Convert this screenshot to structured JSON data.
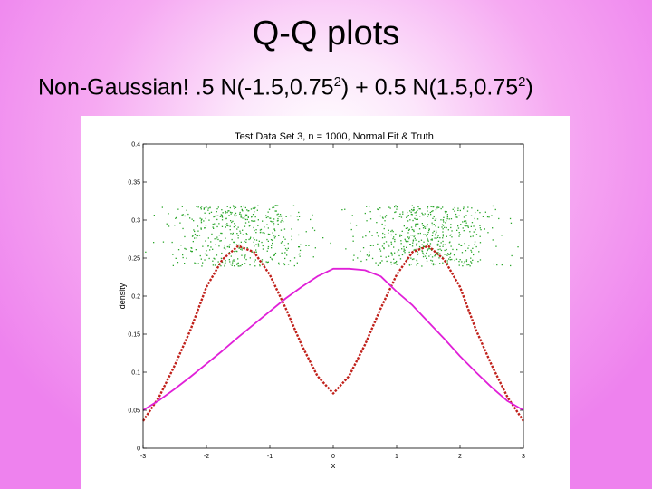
{
  "slide": {
    "title": "Q-Q plots",
    "subtitle_parts": [
      "Non-Gaussian! .5 N(-1.5,0.75",
      "2",
      ") + 0.5 N(1.5,0.75",
      "2",
      ")"
    ]
  },
  "chart_data": {
    "type": "line",
    "title": "Test Data Set 3, n = 1000, Normal Fit & Truth",
    "xlabel": "x",
    "ylabel": "density",
    "xlim": [
      -3,
      3
    ],
    "ylim": [
      0,
      0.4
    ],
    "xticks": [
      -3,
      -2,
      -1,
      0,
      1,
      2,
      3
    ],
    "yticks": [
      0,
      0.05,
      0.1,
      0.15,
      0.2,
      0.25,
      0.3,
      0.35,
      0.4
    ],
    "xtick_labels": [
      "-3",
      "-2",
      "-1",
      "0",
      "1",
      "2",
      "3"
    ],
    "ytick_labels": [
      "0",
      "0.05",
      "0.1",
      "0.15",
      "0.2",
      "0.25",
      "0.3",
      "0.35",
      "0.4"
    ],
    "grid": false,
    "series": [
      {
        "kind": "dashed-line",
        "color": "#c0201a",
        "x": [
          -3,
          -2.75,
          -2.5,
          -2.25,
          -2,
          -1.75,
          -1.5,
          -1.25,
          -1,
          -0.75,
          -0.5,
          -0.25,
          0,
          0.25,
          0.5,
          0.75,
          1,
          1.25,
          1.5,
          1.75,
          2,
          2.25,
          2.5,
          2.75,
          3
        ],
        "y": [
          0.036,
          0.067,
          0.109,
          0.156,
          0.212,
          0.248,
          0.266,
          0.258,
          0.228,
          0.184,
          0.136,
          0.095,
          0.072,
          0.095,
          0.136,
          0.184,
          0.228,
          0.258,
          0.266,
          0.248,
          0.212,
          0.156,
          0.109,
          0.067,
          0.036
        ]
      },
      {
        "kind": "solid-line",
        "color": "#e020d8",
        "x": [
          -3,
          -2.75,
          -2.5,
          -2.25,
          -2,
          -1.75,
          -1.5,
          -1.25,
          -1,
          -0.75,
          -0.5,
          -0.25,
          0,
          0.25,
          0.5,
          0.75,
          1,
          1.25,
          1.5,
          1.75,
          2,
          2.25,
          2.5,
          2.75,
          3
        ],
        "y": [
          0.05,
          0.063,
          0.078,
          0.094,
          0.111,
          0.128,
          0.146,
          0.163,
          0.18,
          0.197,
          0.212,
          0.226,
          0.236,
          0.236,
          0.234,
          0.226,
          0.206,
          0.188,
          0.166,
          0.144,
          0.121,
          0.1,
          0.08,
          0.062,
          0.05
        ]
      },
      {
        "kind": "scatter",
        "color": "#2aa62a",
        "n": 1000,
        "x_range": [
          -3,
          3
        ],
        "y_range": [
          0.24,
          0.32
        ]
      }
    ]
  }
}
